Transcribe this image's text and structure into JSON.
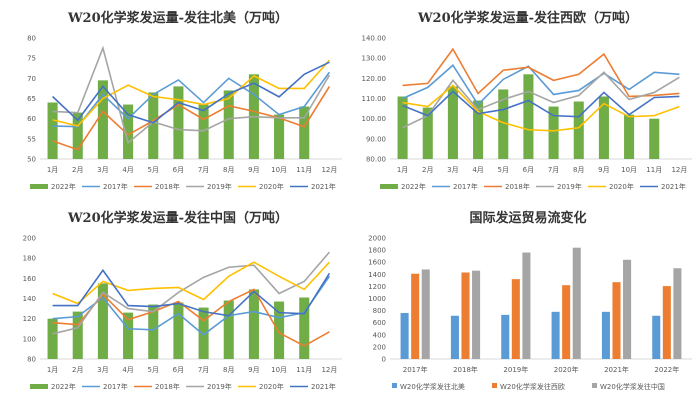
{
  "colors": {
    "2022年": "#70AD47",
    "2017年": "#5B9BD5",
    "2018年": "#ED7D31",
    "2019年": "#A5A5A5",
    "2020年": "#FFC000",
    "2021年": "#4472C4",
    "W20化学浆发往北美": "#5B9BD5",
    "W20化学浆发往西欧": "#ED7D31",
    "W20化学浆发往中国": "#A5A5A5"
  },
  "chart_data": [
    {
      "type": "bar+line",
      "title": "W20化学浆发运量-发往北美（万吨）",
      "categories": [
        "1月",
        "2月",
        "3月",
        "4月",
        "5月",
        "6月",
        "7月",
        "8月",
        "9月",
        "10月",
        "11月",
        "12月"
      ],
      "ylim": [
        50,
        80
      ],
      "yticks": [
        "50",
        "55",
        "60",
        "65",
        "70",
        "75",
        "80"
      ],
      "ystep": 5,
      "legend": "bottom",
      "bar_series": {
        "name": "2022年",
        "values": [
          64,
          61.5,
          69.5,
          63.5,
          66.5,
          68,
          63.5,
          67,
          71,
          61,
          63,
          null
        ]
      },
      "line_series": [
        {
          "name": "2017年",
          "values": [
            58.2,
            58,
            66,
            60,
            66,
            69.6,
            64,
            70,
            66,
            61,
            63,
            71.5
          ]
        },
        {
          "name": "2018年",
          "values": [
            54.5,
            52.3,
            61.8,
            56,
            59.5,
            63.5,
            59.8,
            63.2,
            61.8,
            60.2,
            58,
            68
          ]
        },
        {
          "name": "2019年",
          "values": [
            61.8,
            61.5,
            77.5,
            54,
            59.2,
            57.3,
            57,
            60,
            60.5,
            60.2,
            60.2,
            70.8
          ]
        },
        {
          "name": "2020年",
          "values": [
            59.7,
            58.2,
            65,
            68.3,
            65.5,
            64.7,
            63.5,
            65,
            70.6,
            67.5,
            67.5,
            74.5
          ]
        },
        {
          "name": "2021年",
          "values": [
            65.5,
            59.6,
            68,
            61,
            59,
            64,
            62,
            66.2,
            68.8,
            65.4,
            71,
            74
          ]
        }
      ]
    },
    {
      "type": "bar+line",
      "title": "W20化学浆发运量-发往西欧（万吨）",
      "categories": [
        "1月",
        "2月",
        "3月",
        "4月",
        "5月",
        "6月",
        "7月",
        "8月",
        "9月",
        "10月",
        "11月",
        "12月"
      ],
      "ylim": [
        80,
        140
      ],
      "yticks": [
        "80.00",
        "90.00",
        "100.00",
        "110.00",
        "120.00",
        "130.00",
        "140.00"
      ],
      "ystep": 10,
      "legend": "bottom",
      "bar_series": {
        "name": "2022年",
        "values": [
          111,
          105.5,
          116,
          109,
          114.5,
          122,
          106,
          108.5,
          111,
          102,
          100,
          null
        ]
      },
      "line_series": [
        {
          "name": "2017年",
          "values": [
            110,
            115.5,
            126.5,
            107,
            119.5,
            126,
            112,
            114,
            122.5,
            114.5,
            123,
            122
          ]
        },
        {
          "name": "2018年",
          "values": [
            116.5,
            117.5,
            134.5,
            112.5,
            124,
            125.5,
            119,
            122,
            132,
            111,
            111.5,
            112.5
          ]
        },
        {
          "name": "2019年",
          "values": [
            95.5,
            101.5,
            119,
            104.5,
            109.5,
            113.5,
            108,
            111.5,
            123,
            109.5,
            113,
            120.5
          ]
        },
        {
          "name": "2020年",
          "values": [
            108,
            106,
            116.5,
            103.5,
            98,
            94.5,
            94,
            95.5,
            107.5,
            101,
            101.5,
            106
          ]
        },
        {
          "name": "2021年",
          "values": [
            106.5,
            101.5,
            113.5,
            102.5,
            104.5,
            109,
            101.5,
            101,
            113,
            102,
            110.5,
            111
          ]
        }
      ]
    },
    {
      "type": "bar+line",
      "title": "W20化学浆发运量-发往中国（万吨）",
      "categories": [
        "1月",
        "2月",
        "3月",
        "4月",
        "5月",
        "6月",
        "7月",
        "8月",
        "9月",
        "10月",
        "11月",
        "12月"
      ],
      "ylim": [
        80,
        200
      ],
      "yticks": [
        "80",
        "100",
        "120",
        "140",
        "160",
        "180",
        "200"
      ],
      "ystep": 20,
      "legend": "bottom",
      "bar_series": {
        "name": "2022年",
        "values": [
          120,
          127,
          155,
          126,
          134,
          136,
          131,
          138,
          149,
          137,
          141,
          null
        ]
      },
      "line_series": [
        {
          "name": "2017年",
          "values": [
            120,
            122,
            141,
            110,
            109,
            125,
            104,
            123,
            127,
            121,
            126,
            162
          ]
        },
        {
          "name": "2018年",
          "values": [
            116,
            114,
            144,
            119,
            127,
            137,
            118,
            137,
            149,
            106,
            93,
            107
          ]
        },
        {
          "name": "2019年",
          "values": [
            105,
            111,
            146,
            130,
            127,
            146,
            161,
            171,
            173,
            145,
            157,
            186
          ]
        },
        {
          "name": "2020年",
          "values": [
            145,
            135,
            157,
            148,
            150,
            151,
            139,
            162,
            176,
            162,
            149,
            176
          ]
        },
        {
          "name": "2021年",
          "values": [
            133,
            133,
            168,
            133,
            132,
            135,
            127,
            123,
            147,
            126,
            125,
            165
          ]
        }
      ]
    },
    {
      "type": "bar",
      "title": "国际发运贸易流变化",
      "categories": [
        "2017年",
        "2018年",
        "2019年",
        "2020年",
        "2021年",
        "2022年"
      ],
      "ylim": [
        0,
        2000
      ],
      "yticks": [
        "0",
        "200",
        "400",
        "600",
        "800",
        "1000",
        "1200",
        "1400",
        "1600",
        "1800",
        "2000"
      ],
      "ystep": 200,
      "legend": "bottom",
      "series": [
        {
          "name": "W20化学浆发往北美",
          "values": [
            760,
            715,
            730,
            780,
            780,
            715
          ]
        },
        {
          "name": "W20化学浆发往西欧",
          "values": [
            1410,
            1430,
            1320,
            1220,
            1270,
            1205
          ]
        },
        {
          "name": "W20化学浆发往中国",
          "values": [
            1480,
            1460,
            1760,
            1840,
            1640,
            1500
          ]
        }
      ]
    }
  ]
}
